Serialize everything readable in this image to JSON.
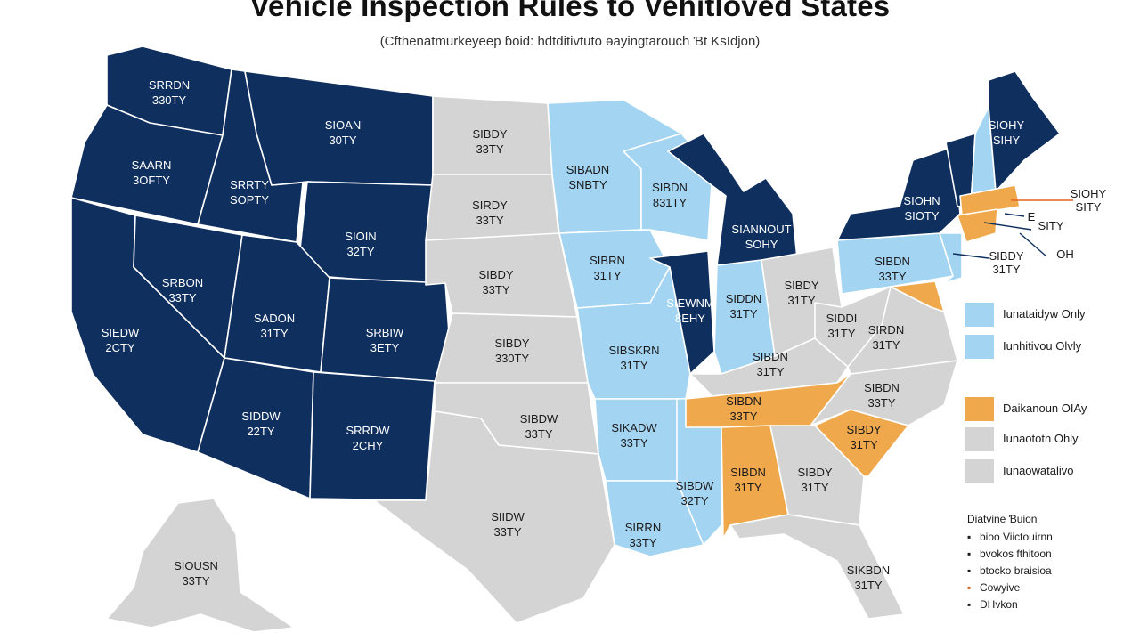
{
  "header": {
    "title": "Vehicle Inspection Rules to Vehitloved States",
    "subtitle": "(Cfthenatmurkeyeep ɓoid: hdtditivtuto ɵayingtarouch Ɓt KsIdjon)"
  },
  "colors": {
    "dark_navy": "#0f2f5e",
    "light_blue": "#a3d4f2",
    "orange": "#f0a84c",
    "gray": "#d4d4d4",
    "orange_accent": "#e2621f",
    "border": "#ffffff"
  },
  "map": {
    "regions": [
      {
        "id": "WA",
        "category": "dark_navy",
        "label": [
          "SRRDN",
          "330TY"
        ]
      },
      {
        "id": "OR",
        "category": "dark_navy",
        "label": [
          "SAARN",
          "3OFTY"
        ]
      },
      {
        "id": "ID",
        "category": "dark_navy",
        "label": [
          "SRRTY",
          "SOPTY"
        ]
      },
      {
        "id": "MT",
        "category": "dark_navy",
        "label": [
          "SIOAN",
          "30TY"
        ]
      },
      {
        "id": "WY",
        "category": "dark_navy",
        "label": [
          "SIOIN",
          "32TY"
        ]
      },
      {
        "id": "CA",
        "category": "dark_navy",
        "label": [
          "SIEDW",
          "2CTY"
        ]
      },
      {
        "id": "NV",
        "category": "dark_navy",
        "label": [
          "SRBON",
          "33TY"
        ]
      },
      {
        "id": "UT",
        "category": "dark_navy",
        "label": [
          "SADON",
          "31TY"
        ]
      },
      {
        "id": "CO",
        "category": "dark_navy",
        "label": [
          "SRBIW",
          "3ETY"
        ]
      },
      {
        "id": "AZ",
        "category": "dark_navy",
        "label": [
          "SIDDW",
          "22TY"
        ]
      },
      {
        "id": "NM",
        "category": "dark_navy",
        "label": [
          "SRRDW",
          "2CHY"
        ]
      },
      {
        "id": "ND",
        "category": "gray",
        "label": [
          "SIBDY",
          "33TY"
        ]
      },
      {
        "id": "SD",
        "category": "gray",
        "label": [
          "SIRDY",
          "33TY"
        ]
      },
      {
        "id": "NE",
        "category": "gray",
        "label": [
          "SIBDY",
          "33TY"
        ]
      },
      {
        "id": "KS",
        "category": "gray",
        "label": [
          "SIBDY",
          "330TY"
        ]
      },
      {
        "id": "OK",
        "category": "gray",
        "label": [
          "SIBDW",
          "33TY"
        ]
      },
      {
        "id": "TX",
        "category": "gray",
        "label": [
          "SIIDW",
          "33TY"
        ]
      },
      {
        "id": "MN",
        "category": "light_blue",
        "label": [
          "SIBADN",
          "SNBTY"
        ]
      },
      {
        "id": "IA",
        "category": "light_blue",
        "label": [
          "SIBRN",
          "31TY"
        ]
      },
      {
        "id": "MO",
        "category": "light_blue",
        "label": [
          "SIBSKRN",
          "31TY"
        ]
      },
      {
        "id": "AR",
        "category": "light_blue",
        "label": [
          "SIKADW",
          "33TY"
        ]
      },
      {
        "id": "LA",
        "category": "light_blue",
        "label": [
          "SIRRN",
          "33TY"
        ]
      },
      {
        "id": "WI",
        "category": "light_blue",
        "label": [
          "SIBDN",
          "831TY"
        ]
      },
      {
        "id": "MS",
        "category": "light_blue",
        "label": [
          "SIBDW",
          "32TY"
        ]
      },
      {
        "id": "IN",
        "category": "light_blue",
        "label": [
          "SIDDN",
          "31TY"
        ]
      },
      {
        "id": "IL",
        "category": "dark_navy",
        "label": [
          "SIEWNM",
          "8EHY"
        ]
      },
      {
        "id": "MI",
        "category": "dark_navy",
        "label": [
          "SIANNOUT",
          "SOHY"
        ]
      },
      {
        "id": "OH",
        "category": "gray",
        "label": [
          "SIBDY",
          "31TY"
        ]
      },
      {
        "id": "KY",
        "category": "gray",
        "label": [
          "SIBDN",
          "31TY"
        ]
      },
      {
        "id": "TN",
        "category": "orange",
        "label": [
          "SIBDN",
          "33TY"
        ]
      },
      {
        "id": "AL",
        "category": "orange",
        "label": [
          "SIBDN",
          "31TY"
        ]
      },
      {
        "id": "GA",
        "category": "gray",
        "label": [
          "SIBDY",
          "31TY"
        ]
      },
      {
        "id": "FL",
        "category": "gray",
        "label": [
          "SIKBDN",
          "31TY"
        ]
      },
      {
        "id": "SC",
        "category": "orange",
        "label": [
          "SIBDY",
          "31TY"
        ]
      },
      {
        "id": "NC",
        "category": "gray",
        "label": [
          "SIBDN",
          "33TY"
        ]
      },
      {
        "id": "VA",
        "category": "gray",
        "label": [
          "SIRDN",
          "31TY"
        ]
      },
      {
        "id": "WV",
        "category": "gray",
        "label": [
          "SIDDI",
          "31TY"
        ]
      },
      {
        "id": "PA",
        "category": "light_blue",
        "label": [
          "SIBDN",
          "33TY"
        ]
      },
      {
        "id": "NY",
        "category": "dark_navy",
        "label": [
          "SIOHN",
          "SIOTY"
        ]
      },
      {
        "id": "VT",
        "category": "dark_navy",
        "label": []
      },
      {
        "id": "NH",
        "category": "light_blue",
        "label": []
      },
      {
        "id": "ME",
        "category": "dark_navy",
        "label": [
          "SIOHY",
          "SIHY"
        ]
      },
      {
        "id": "MA",
        "category": "orange",
        "label": []
      },
      {
        "id": "CT",
        "category": "orange",
        "label": []
      },
      {
        "id": "NJ",
        "category": "light_blue",
        "label": []
      },
      {
        "id": "MD",
        "category": "orange",
        "label": []
      },
      {
        "id": "AK",
        "category": "gray",
        "label": [
          "SIOUSN",
          "33TY"
        ]
      }
    ],
    "callouts": [
      {
        "target": "MA",
        "lines": [
          "SIOHY",
          "SITY"
        ]
      },
      {
        "target": "RI",
        "lines": [
          "E"
        ]
      },
      {
        "target": "CT",
        "lines": [
          "SITY"
        ]
      },
      {
        "target": "NJ",
        "lines": [
          "SIBDY",
          "31TY"
        ]
      },
      {
        "target": "DE",
        "lines": [
          "OH"
        ]
      }
    ]
  },
  "legend": {
    "items": [
      {
        "color": "light_blue",
        "label": "Iunataidyw Only"
      },
      {
        "color": "light_blue",
        "label": "Iunhitivou Olvly"
      },
      {
        "color": "orange",
        "label": "Daikanoun OIAy"
      },
      {
        "color": "gray",
        "label": "Iunaototn Ohly"
      },
      {
        "color": "gray",
        "label": "Iunaowatalivo"
      }
    ]
  },
  "source": {
    "title": "Diatvine Ɓuion",
    "items": [
      {
        "bullet": "▪",
        "text": "bioo Viictouirnn"
      },
      {
        "bullet": "▪",
        "text": "bvokos fthitoon"
      },
      {
        "bullet": "▪",
        "text": "btocko braisioa"
      },
      {
        "bullet": "▪",
        "text": "Cowyive"
      },
      {
        "bullet": "▪",
        "text": "DHvkon"
      }
    ]
  }
}
